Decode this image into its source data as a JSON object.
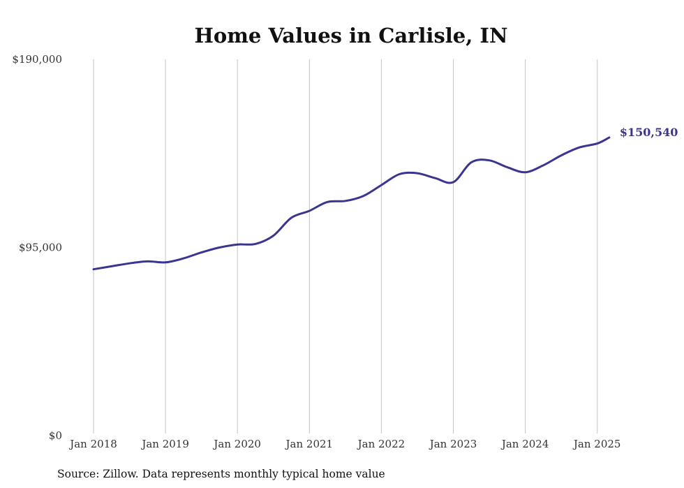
{
  "chart_data": {
    "type": "line",
    "title": "Home Values in Carlisle, IN",
    "source": "Source: Zillow. Data represents monthly typical home value",
    "xlabel": "",
    "ylabel": "",
    "ylim": [
      0,
      190000
    ],
    "y_ticks": [
      {
        "value": 0,
        "label": "$0"
      },
      {
        "value": 95000,
        "label": "$95,000"
      },
      {
        "value": 190000,
        "label": "$190,000"
      }
    ],
    "x_ticks": [
      {
        "value": "2018-01",
        "label": "Jan 2018"
      },
      {
        "value": "2019-01",
        "label": "Jan 2019"
      },
      {
        "value": "2020-01",
        "label": "Jan 2020"
      },
      {
        "value": "2021-01",
        "label": "Jan 2021"
      },
      {
        "value": "2022-01",
        "label": "Jan 2022"
      },
      {
        "value": "2023-01",
        "label": "Jan 2023"
      },
      {
        "value": "2024-01",
        "label": "Jan 2024"
      },
      {
        "value": "2025-01",
        "label": "Jan 2025"
      }
    ],
    "grid": "vertical",
    "line_color": "#3a3590",
    "series": [
      {
        "points": [
          [
            "2018-01",
            84000
          ],
          [
            "2018-04",
            85500
          ],
          [
            "2018-07",
            87000
          ],
          [
            "2018-10",
            88000
          ],
          [
            "2019-01",
            87500
          ],
          [
            "2019-04",
            89500
          ],
          [
            "2019-07",
            92500
          ],
          [
            "2019-10",
            95000
          ],
          [
            "2020-01",
            96500
          ],
          [
            "2020-04",
            96800
          ],
          [
            "2020-07",
            101000
          ],
          [
            "2020-10",
            110000
          ],
          [
            "2021-01",
            113500
          ],
          [
            "2021-04",
            118000
          ],
          [
            "2021-07",
            118500
          ],
          [
            "2021-10",
            121000
          ],
          [
            "2022-01",
            126500
          ],
          [
            "2022-04",
            132000
          ],
          [
            "2022-07",
            132500
          ],
          [
            "2022-10",
            130000
          ],
          [
            "2023-01",
            128000
          ],
          [
            "2023-04",
            138000
          ],
          [
            "2023-07",
            139000
          ],
          [
            "2023-10",
            135500
          ],
          [
            "2024-01",
            133000
          ],
          [
            "2024-04",
            136500
          ],
          [
            "2024-07",
            141500
          ],
          [
            "2024-10",
            145500
          ],
          [
            "2025-01",
            147500
          ],
          [
            "2025-03",
            150540
          ]
        ]
      }
    ],
    "end_label": {
      "value": 150540,
      "text": "$150,540"
    }
  }
}
